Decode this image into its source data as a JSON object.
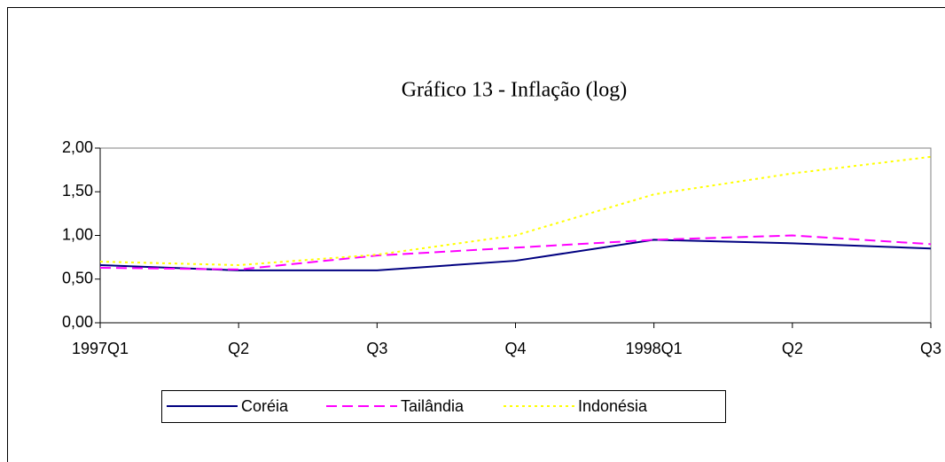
{
  "chart_data": {
    "type": "line",
    "title": "Gráfico 13 - Inflação (log)",
    "categories": [
      "1997Q1",
      "Q2",
      "Q3",
      "Q4",
      "1998Q1",
      "Q2",
      "Q3"
    ],
    "series": [
      {
        "name": "Coréia",
        "color": "#000080",
        "dash": "solid",
        "values": [
          0.66,
          0.6,
          0.6,
          0.71,
          0.95,
          0.91,
          0.85
        ]
      },
      {
        "name": "Tailândia",
        "color": "#ff00ff",
        "dash": "dashed",
        "values": [
          0.63,
          0.61,
          0.77,
          0.86,
          0.95,
          1.0,
          0.9
        ]
      },
      {
        "name": "Indonésia",
        "color": "#ffff00",
        "dash": "dotted",
        "values": [
          0.7,
          0.66,
          0.78,
          1.0,
          1.47,
          1.71,
          1.9
        ]
      }
    ],
    "ylim": [
      0,
      2
    ],
    "yticks": [
      {
        "value": 0,
        "label": "0,00"
      },
      {
        "value": 0.5,
        "label": "0,50"
      },
      {
        "value": 1,
        "label": "1,00"
      },
      {
        "value": 1.5,
        "label": "1,50"
      },
      {
        "value": 2,
        "label": "2,00"
      }
    ],
    "grid": false,
    "legend": "bottom"
  }
}
